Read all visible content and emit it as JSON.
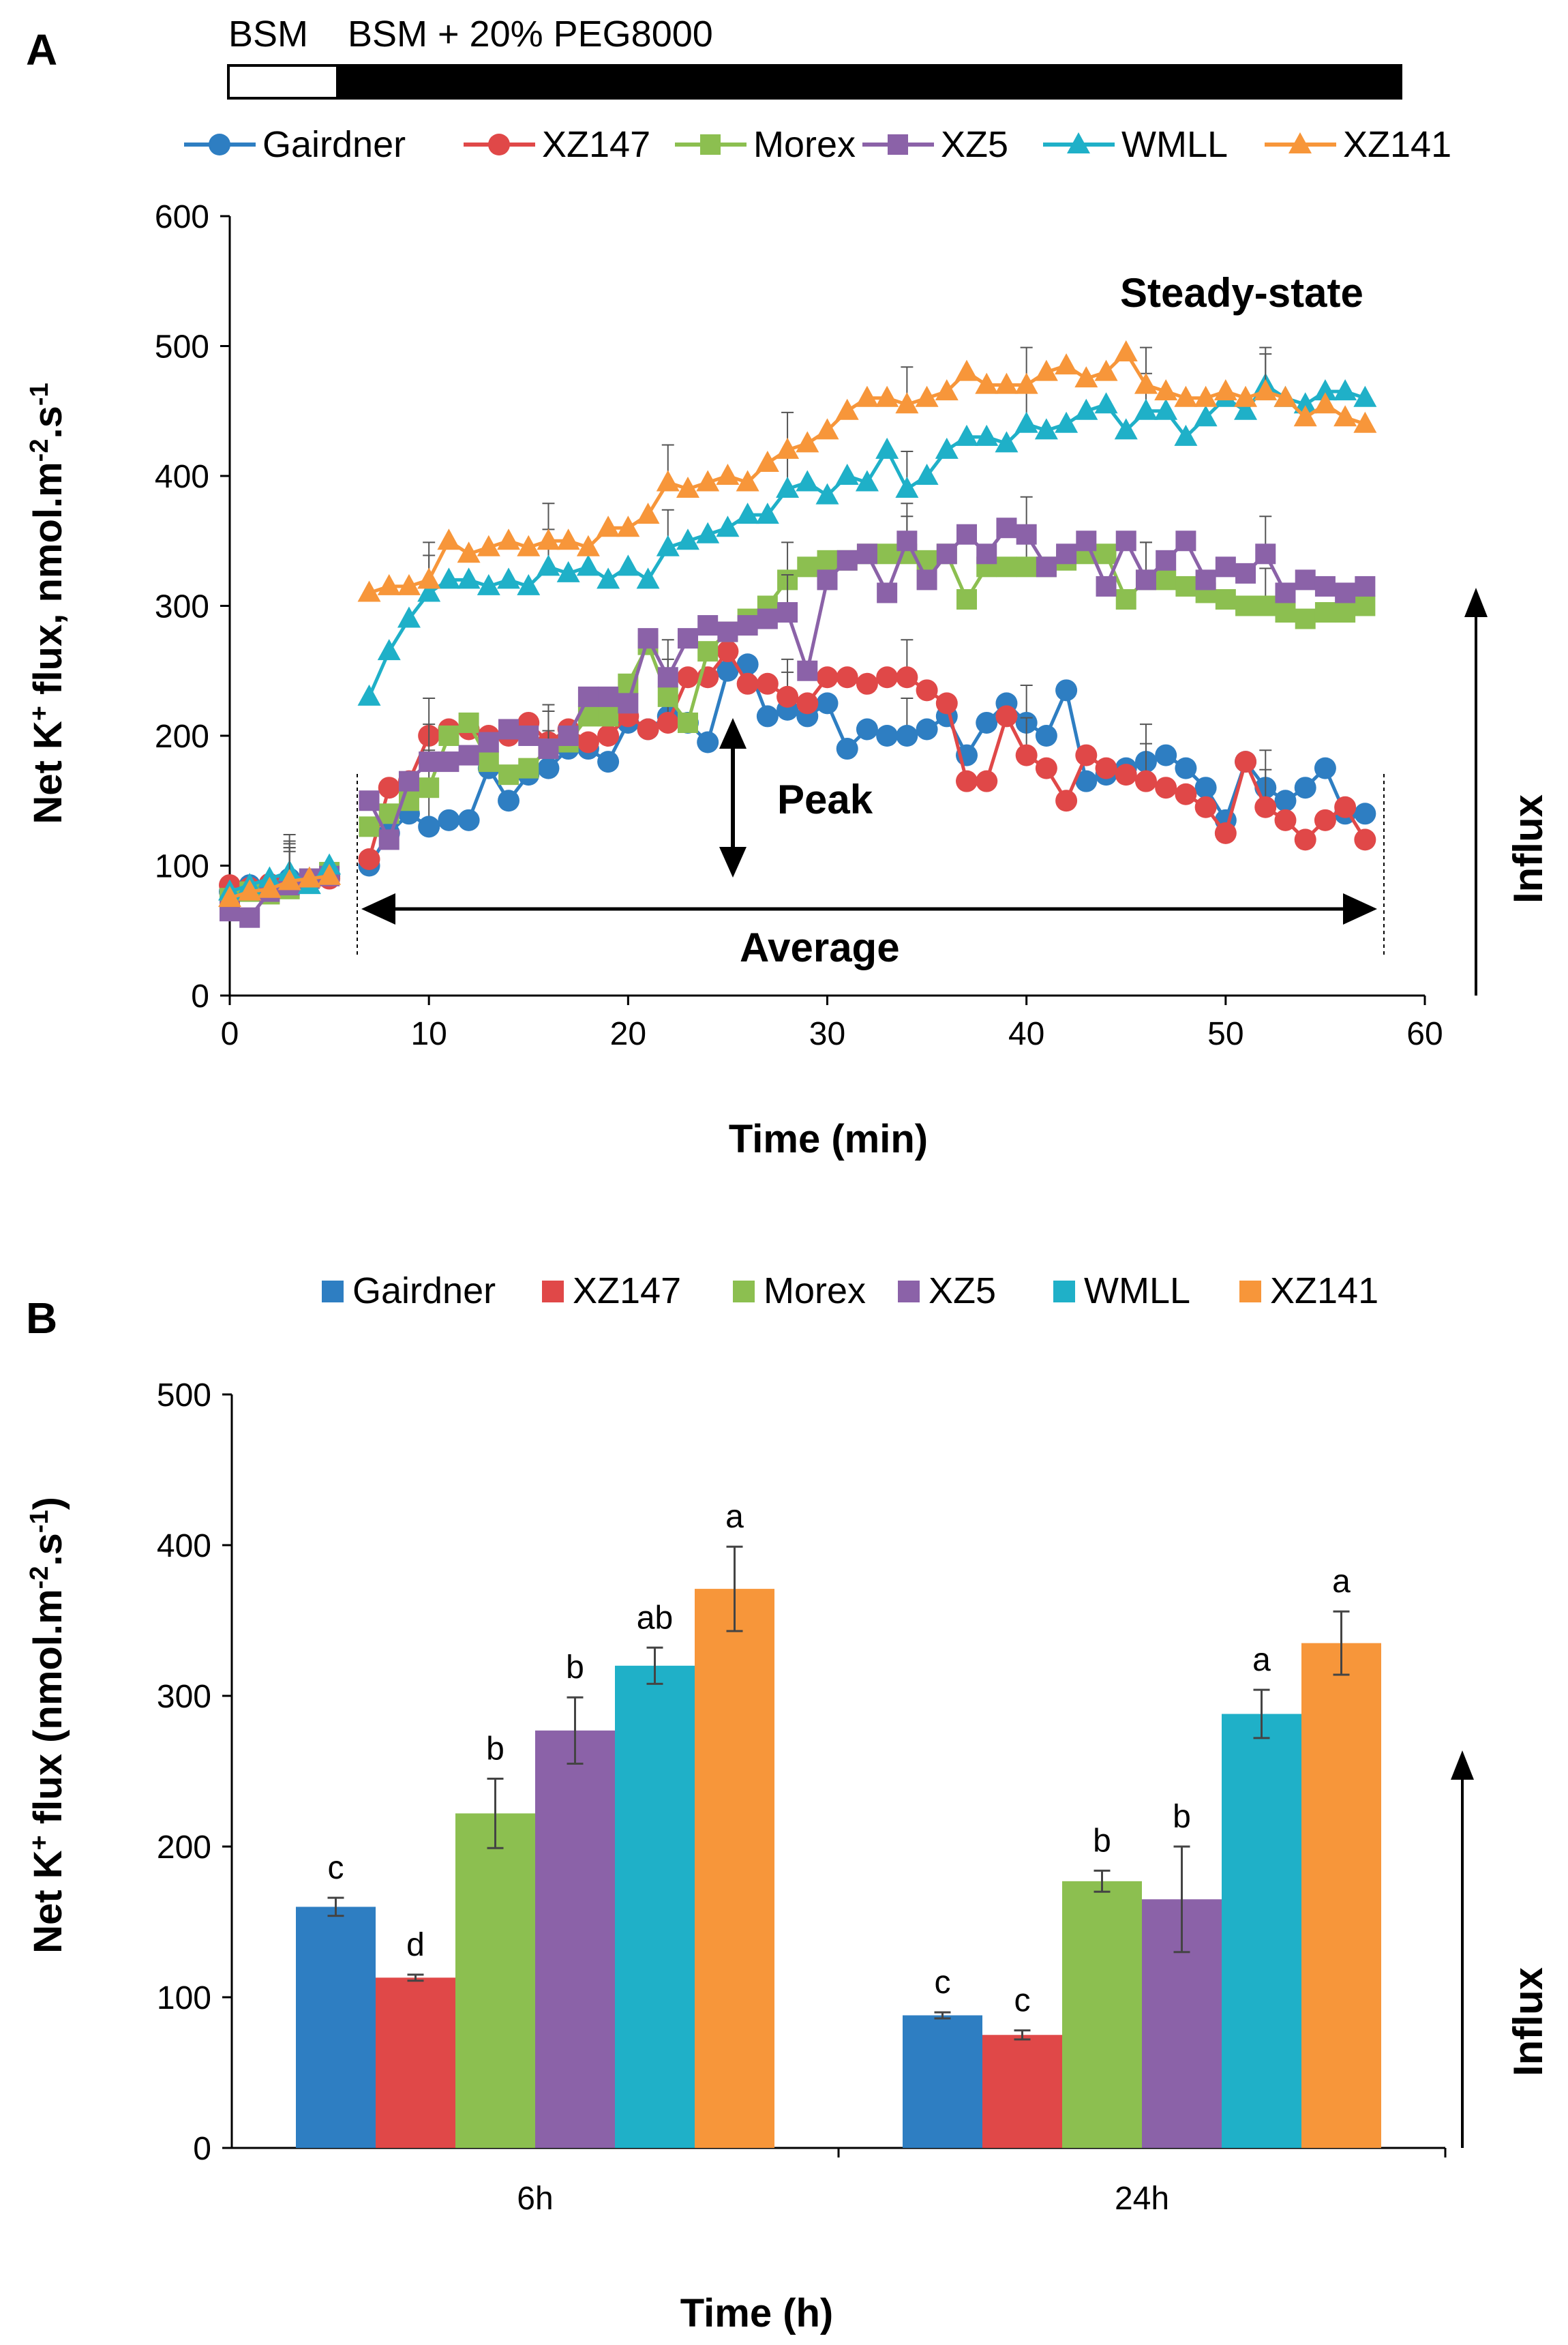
{
  "chart_data": [
    {
      "panel": "A",
      "type": "line",
      "xlabel": "Time (min)",
      "ylabel": "Net K",
      "ylabel_sup1": "+",
      "ylabel_mid": " flux, nmol.m",
      "ylabel_sup2": "-2",
      "ylabel_mid2": ".s",
      "ylabel_sup3": "-1",
      "xlim": [
        0,
        60
      ],
      "ylim": [
        0,
        600
      ],
      "xticks": [
        "0",
        "10",
        "20",
        "30",
        "40",
        "50",
        "60"
      ],
      "yticks": [
        "0",
        "100",
        "200",
        "300",
        "400",
        "500",
        "600"
      ],
      "treatment_bar": {
        "label_1": "BSM",
        "label_2": "BSM  + 20% PEG8000",
        "switch_at": 5.5,
        "end": 58
      },
      "annotations": {
        "steady_state": "Steady-state",
        "peak": "Peak",
        "average": "Average",
        "influx": "Influx"
      },
      "series": [
        {
          "name": "Gairdner",
          "color": "#2E7EC2",
          "marker": "circle",
          "x": [
            0,
            1,
            2,
            3,
            4,
            5,
            7,
            8,
            9,
            10,
            11,
            12,
            13,
            14,
            15,
            16,
            17,
            18,
            19,
            20,
            21,
            22,
            23,
            24,
            25,
            26,
            27,
            28,
            29,
            30,
            31,
            32,
            33,
            34,
            35,
            36,
            37,
            38,
            39,
            40,
            41,
            42,
            43,
            44,
            45,
            46,
            47,
            48,
            49,
            50,
            51,
            52,
            53,
            54,
            55,
            56,
            57
          ],
          "y": [
            80,
            85,
            82,
            90,
            88,
            92,
            100,
            125,
            140,
            130,
            135,
            135,
            175,
            150,
            170,
            175,
            190,
            190,
            180,
            210,
            205,
            215,
            210,
            195,
            250,
            255,
            215,
            220,
            215,
            225,
            190,
            205,
            200,
            200,
            205,
            215,
            185,
            210,
            225,
            210,
            200,
            235,
            165,
            170,
            175,
            180,
            185,
            175,
            160,
            135,
            180,
            160,
            150,
            160,
            175,
            140,
            140
          ]
        },
        {
          "name": "XZ147",
          "color": "#E04848",
          "marker": "circle",
          "x": [
            0,
            1,
            2,
            3,
            4,
            5,
            7,
            8,
            9,
            10,
            11,
            12,
            13,
            14,
            15,
            16,
            17,
            18,
            19,
            20,
            21,
            22,
            23,
            24,
            25,
            26,
            27,
            28,
            29,
            30,
            31,
            32,
            33,
            34,
            35,
            36,
            37,
            38,
            39,
            40,
            41,
            42,
            43,
            44,
            45,
            46,
            47,
            48,
            49,
            50,
            51,
            52,
            53,
            54,
            55,
            56,
            57
          ],
          "y": [
            85,
            83,
            86,
            85,
            88,
            90,
            105,
            160,
            165,
            200,
            205,
            205,
            200,
            200,
            210,
            195,
            205,
            195,
            200,
            215,
            205,
            210,
            245,
            245,
            265,
            240,
            240,
            230,
            225,
            245,
            245,
            240,
            245,
            245,
            235,
            225,
            165,
            165,
            215,
            185,
            175,
            150,
            185,
            175,
            170,
            165,
            160,
            155,
            145,
            125,
            180,
            145,
            135,
            120,
            135,
            145,
            120
          ]
        },
        {
          "name": "Morex",
          "color": "#8CBF50",
          "marker": "square",
          "x": [
            0,
            1,
            2,
            3,
            4,
            5,
            7,
            8,
            9,
            10,
            11,
            12,
            13,
            14,
            15,
            16,
            17,
            18,
            19,
            20,
            21,
            22,
            23,
            24,
            25,
            26,
            27,
            28,
            29,
            30,
            31,
            32,
            33,
            34,
            35,
            36,
            37,
            38,
            39,
            40,
            41,
            42,
            43,
            44,
            45,
            46,
            47,
            48,
            49,
            50,
            51,
            52,
            53,
            54,
            55,
            56,
            57
          ],
          "y": [
            75,
            80,
            78,
            82,
            90,
            95,
            130,
            140,
            150,
            160,
            200,
            210,
            180,
            170,
            175,
            190,
            195,
            215,
            215,
            240,
            270,
            230,
            210,
            265,
            280,
            290,
            300,
            320,
            330,
            335,
            335,
            340,
            340,
            340,
            335,
            340,
            305,
            330,
            330,
            330,
            330,
            335,
            340,
            340,
            305,
            320,
            320,
            315,
            310,
            305,
            300,
            300,
            295,
            290,
            295,
            295,
            300
          ]
        },
        {
          "name": "XZ5",
          "color": "#8B62A8",
          "marker": "square",
          "x": [
            0,
            1,
            2,
            3,
            4,
            5,
            7,
            8,
            9,
            10,
            11,
            12,
            13,
            14,
            15,
            16,
            17,
            18,
            19,
            20,
            21,
            22,
            23,
            24,
            25,
            26,
            27,
            28,
            29,
            30,
            31,
            32,
            33,
            34,
            35,
            36,
            37,
            38,
            39,
            40,
            41,
            42,
            43,
            44,
            45,
            46,
            47,
            48,
            49,
            50,
            51,
            52,
            53,
            54,
            55,
            56,
            57
          ],
          "y": [
            65,
            60,
            80,
            85,
            90,
            92,
            150,
            120,
            165,
            180,
            180,
            185,
            195,
            205,
            200,
            190,
            200,
            230,
            230,
            225,
            275,
            245,
            275,
            285,
            280,
            285,
            290,
            295,
            250,
            320,
            335,
            340,
            310,
            350,
            320,
            340,
            355,
            340,
            360,
            355,
            330,
            340,
            350,
            315,
            350,
            320,
            335,
            350,
            320,
            330,
            325,
            340,
            310,
            320,
            315,
            310,
            315
          ]
        },
        {
          "name": "WMLL",
          "color": "#1FB0C8",
          "marker": "triangle",
          "x": [
            0,
            1,
            2,
            3,
            4,
            5,
            7,
            8,
            9,
            10,
            11,
            12,
            13,
            14,
            15,
            16,
            17,
            18,
            19,
            20,
            21,
            22,
            23,
            24,
            25,
            26,
            27,
            28,
            29,
            30,
            31,
            32,
            33,
            34,
            35,
            36,
            37,
            38,
            39,
            40,
            41,
            42,
            43,
            44,
            45,
            46,
            47,
            48,
            49,
            50,
            51,
            52,
            53,
            54,
            55,
            56,
            57
          ],
          "y": [
            80,
            85,
            90,
            95,
            85,
            100,
            230,
            265,
            290,
            310,
            320,
            320,
            315,
            320,
            315,
            330,
            325,
            330,
            320,
            330,
            320,
            345,
            350,
            355,
            360,
            370,
            370,
            390,
            395,
            385,
            400,
            395,
            420,
            390,
            400,
            420,
            430,
            430,
            425,
            440,
            435,
            440,
            450,
            455,
            435,
            450,
            450,
            430,
            445,
            460,
            450,
            470,
            460,
            455,
            465,
            465,
            460
          ]
        },
        {
          "name": "XZ141",
          "color": "#F7963A",
          "marker": "triangle",
          "x": [
            0,
            1,
            2,
            3,
            4,
            5,
            7,
            8,
            9,
            10,
            11,
            12,
            13,
            14,
            15,
            16,
            17,
            18,
            19,
            20,
            21,
            22,
            23,
            24,
            25,
            26,
            27,
            28,
            29,
            30,
            31,
            32,
            33,
            34,
            35,
            36,
            37,
            38,
            39,
            40,
            41,
            42,
            43,
            44,
            45,
            46,
            47,
            48,
            49,
            50,
            51,
            52,
            53,
            54,
            55,
            56,
            57
          ],
          "y": [
            75,
            80,
            82,
            88,
            90,
            92,
            310,
            315,
            315,
            320,
            350,
            340,
            345,
            350,
            345,
            350,
            350,
            345,
            360,
            360,
            370,
            395,
            390,
            395,
            400,
            395,
            410,
            420,
            425,
            435,
            450,
            460,
            460,
            455,
            460,
            465,
            480,
            470,
            470,
            470,
            480,
            485,
            475,
            480,
            495,
            470,
            465,
            460,
            460,
            465,
            460,
            465,
            460,
            445,
            455,
            445,
            440
          ]
        }
      ]
    },
    {
      "panel": "B",
      "type": "bar",
      "xlabel": "Time (h)",
      "ylabel": "Net K",
      "ylabel_sup1": "+",
      "ylabel_mid": " flux (nmol.m",
      "ylabel_sup2": "-2",
      "ylabel_mid2": ".s",
      "ylabel_sup3": "-1",
      "ylabel_end": ")",
      "categories": [
        "6h",
        "24h"
      ],
      "ylim": [
        0,
        500
      ],
      "yticks": [
        "0",
        "100",
        "200",
        "300",
        "400",
        "500"
      ],
      "influx_label": "Influx",
      "series": [
        {
          "name": "Gairdner",
          "color": "#2E7EC2",
          "values": [
            160,
            88
          ],
          "errors": [
            6,
            2
          ],
          "letters": [
            "c",
            "c"
          ]
        },
        {
          "name": "XZ147",
          "color": "#E04848",
          "values": [
            113,
            75
          ],
          "errors": [
            2,
            3
          ],
          "letters": [
            "d",
            "c"
          ]
        },
        {
          "name": "Morex",
          "color": "#8CBF50",
          "values": [
            222,
            177
          ],
          "errors": [
            23,
            7
          ],
          "letters": [
            "b",
            "b"
          ]
        },
        {
          "name": "XZ5",
          "color": "#8B62A8",
          "values": [
            277,
            165
          ],
          "errors": [
            22,
            35
          ],
          "letters": [
            "b",
            "b"
          ]
        },
        {
          "name": "WMLL",
          "color": "#1FB0C8",
          "values": [
            320,
            288
          ],
          "errors": [
            12,
            16
          ],
          "letters": [
            "ab",
            "a"
          ]
        },
        {
          "name": "XZ141",
          "color": "#F7963A",
          "values": [
            371,
            335
          ],
          "errors": [
            28,
            21
          ],
          "letters": [
            "a",
            "a"
          ]
        }
      ]
    }
  ]
}
